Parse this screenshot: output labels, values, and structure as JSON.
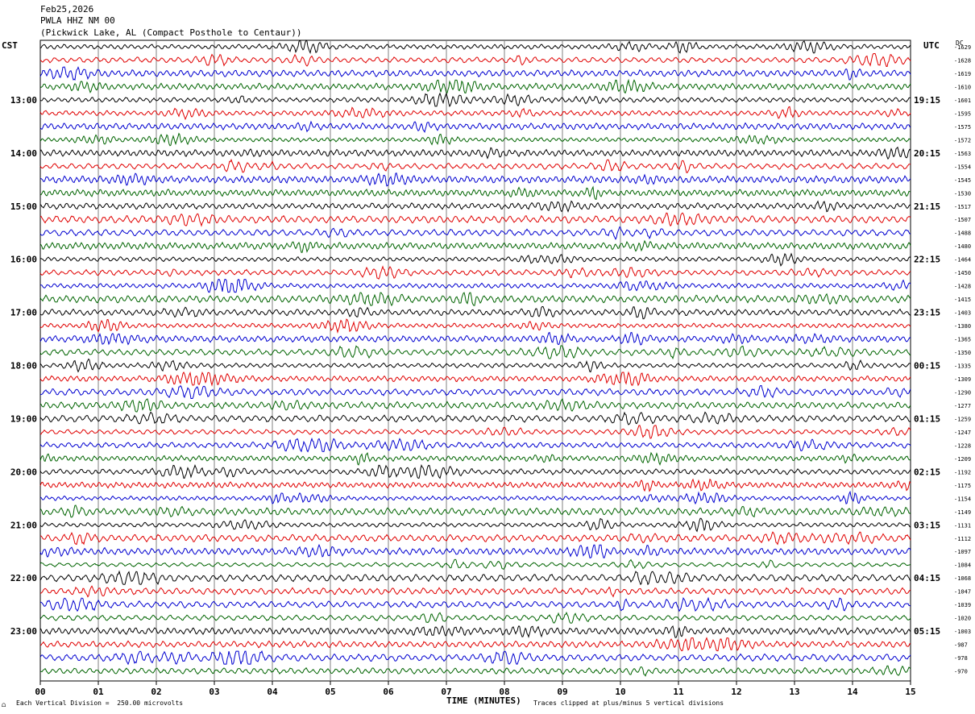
{
  "header": {
    "date": "Feb25,2026",
    "station": "PWLA HHZ NM 00",
    "location": "(Pickwick Lake, AL (Compact Posthole to Centaur))"
  },
  "left_axis_label": "CST",
  "right_axis_label": "UTC",
  "dc_label": "DC",
  "footer": {
    "scale_note": "Each Vertical Division =  250.00 microvolts",
    "clip_note": "Traces clipped at plus/minus 5 vertical divisions",
    "icon": "seismograph-icon"
  },
  "colors": {
    "trace_cycle": [
      "#000000",
      "#e00000",
      "#0000d0",
      "#006400"
    ],
    "grid": "#808080",
    "background": "#ffffff"
  },
  "chart_data": {
    "type": "line",
    "title": "",
    "xlabel": "TIME (MINUTES)",
    "x_range": [
      0,
      15
    ],
    "x_ticks": [
      "00",
      "01",
      "02",
      "03",
      "04",
      "05",
      "06",
      "07",
      "08",
      "09",
      "10",
      "11",
      "12",
      "13",
      "14",
      "15"
    ],
    "rows_per_hour": 4,
    "row_count": 48,
    "left_hour_labels": [
      "13:00",
      "14:00",
      "15:00",
      "16:00",
      "17:00",
      "18:00",
      "19:00",
      "20:00",
      "21:00",
      "22:00",
      "23:00"
    ],
    "left_label_first_row": 4,
    "right_hour_labels": [
      "19:15",
      "20:15",
      "21:15",
      "22:15",
      "23:15",
      "00:15",
      "01:15",
      "02:15",
      "03:15",
      "04:15",
      "05:15"
    ],
    "right_label_first_row": 4,
    "dc_offsets": [
      "-1629",
      "-1628",
      "-1619",
      "-1610",
      "-1601",
      "-1595",
      "-1575",
      "-1572",
      "-1563",
      "-1554",
      "-1545",
      "-1530",
      "-1517",
      "-1507",
      "-1488",
      "-1480",
      "-1464",
      "-1450",
      "-1428",
      "-1415",
      "-1403",
      "-1380",
      "-1365",
      "-1350",
      "-1335",
      "-1309",
      "-1290",
      "-1277",
      "-1259",
      "-1247",
      "-1228",
      "-1209",
      "-1192",
      "-1175",
      "-1154",
      "-1149",
      "-1131",
      "-1112",
      "-1097",
      "-1084",
      "-1068",
      "-1047",
      "-1039",
      "-1020",
      "-1003",
      "-987",
      "-978",
      "-970"
    ]
  }
}
